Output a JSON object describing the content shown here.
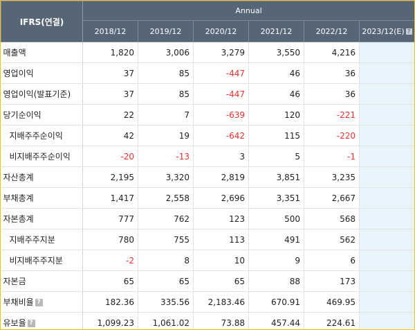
{
  "table": {
    "corner_label": "IFRS(연결)",
    "group_label": "Annual",
    "years": [
      "2018/12",
      "2019/12",
      "2020/12",
      "2021/12",
      "2022/12"
    ],
    "estimate_year": "2023/12(E)",
    "estimate_help_icon": "question-mark-icon",
    "rows": [
      {
        "label": "매출액",
        "indent": false,
        "help": false,
        "values": [
          "1,820",
          "3,006",
          "3,279",
          "3,550",
          "4,216"
        ],
        "estimate": ""
      },
      {
        "label": "영업이익",
        "indent": false,
        "help": false,
        "values": [
          "37",
          "85",
          "-447",
          "46",
          "36"
        ],
        "estimate": ""
      },
      {
        "label": "영업이익(발표기준)",
        "indent": false,
        "help": false,
        "values": [
          "37",
          "85",
          "-447",
          "46",
          "36"
        ],
        "estimate": ""
      },
      {
        "label": "당기순이익",
        "indent": false,
        "help": false,
        "values": [
          "22",
          "7",
          "-639",
          "120",
          "-221"
        ],
        "estimate": ""
      },
      {
        "label": "지배주주순이익",
        "indent": true,
        "help": false,
        "values": [
          "42",
          "19",
          "-642",
          "115",
          "-220"
        ],
        "estimate": ""
      },
      {
        "label": "비지배주주순이익",
        "indent": true,
        "help": false,
        "values": [
          "-20",
          "-13",
          "3",
          "5",
          "-1"
        ],
        "estimate": ""
      },
      {
        "label": "자산총계",
        "indent": false,
        "help": false,
        "values": [
          "2,195",
          "3,320",
          "2,819",
          "3,851",
          "3,235"
        ],
        "estimate": ""
      },
      {
        "label": "부채총계",
        "indent": false,
        "help": false,
        "values": [
          "1,417",
          "2,558",
          "2,696",
          "3,351",
          "2,667"
        ],
        "estimate": ""
      },
      {
        "label": "자본총계",
        "indent": false,
        "help": false,
        "values": [
          "777",
          "762",
          "123",
          "500",
          "568"
        ],
        "estimate": ""
      },
      {
        "label": "지배주주지분",
        "indent": true,
        "help": false,
        "values": [
          "780",
          "755",
          "113",
          "491",
          "562"
        ],
        "estimate": ""
      },
      {
        "label": "비지배주주지분",
        "indent": true,
        "help": false,
        "values": [
          "-2",
          "8",
          "10",
          "9",
          "6"
        ],
        "estimate": ""
      },
      {
        "label": "자본금",
        "indent": false,
        "help": false,
        "values": [
          "65",
          "65",
          "65",
          "88",
          "173"
        ],
        "estimate": ""
      },
      {
        "label": "부채비율",
        "indent": false,
        "help": true,
        "values": [
          "182.36",
          "335.56",
          "2,183.46",
          "670.91",
          "469.95"
        ],
        "estimate": ""
      },
      {
        "label": "유보율",
        "indent": false,
        "help": true,
        "values": [
          "1,099.23",
          "1,061.02",
          "73.88",
          "457.44",
          "224.61"
        ],
        "estimate": ""
      }
    ]
  },
  "colors": {
    "header_bg": "#566677",
    "negative": "#e8302f",
    "estimate_bg": "#e8f4fb",
    "border_accent": "#f2c21a"
  }
}
